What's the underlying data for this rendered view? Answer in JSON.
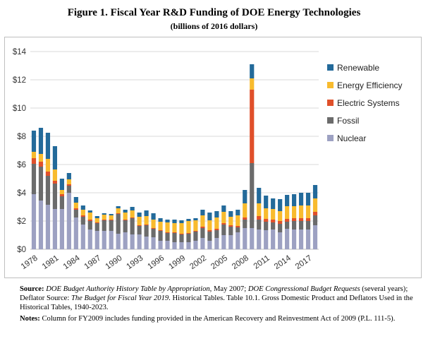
{
  "figure": {
    "title": "Figure 1. Fiscal Year R&D Funding of DOE Energy Technologies",
    "subtitle": "(billions of 2016 dollars)"
  },
  "chart_data": {
    "type": "bar",
    "stacked": true,
    "title": "Figure 1. Fiscal Year R&D Funding of DOE Energy Technologies",
    "subtitle": "(billions of 2016 dollars)",
    "xlabel": "",
    "ylabel": "",
    "ylim": [
      0,
      14
    ],
    "yticks": [
      "$0",
      "$2",
      "$4",
      "$6",
      "$8",
      "$10",
      "$12",
      "$14"
    ],
    "xtick_labels": [
      "1978",
      "1981",
      "1984",
      "1987",
      "1990",
      "1993",
      "1996",
      "1999",
      "2002",
      "2005",
      "2008",
      "2011",
      "2014",
      "2017"
    ],
    "grid": true,
    "legend_position": "right",
    "categories": [
      1978,
      1979,
      1980,
      1981,
      1982,
      1983,
      1984,
      1985,
      1986,
      1987,
      1988,
      1989,
      1990,
      1991,
      1992,
      1993,
      1994,
      1995,
      1996,
      1997,
      1998,
      1999,
      2000,
      2001,
      2002,
      2003,
      2004,
      2005,
      2006,
      2007,
      2008,
      2009,
      2010,
      2011,
      2012,
      2013,
      2014,
      2015,
      2016,
      2017,
      2018
    ],
    "series": [
      {
        "name": "Nuclear",
        "color": "#9da1c2",
        "values": [
          3.9,
          3.45,
          3.15,
          2.85,
          2.85,
          4.0,
          2.25,
          1.75,
          1.4,
          1.3,
          1.3,
          1.3,
          1.1,
          1.2,
          1.05,
          1.05,
          0.9,
          0.85,
          0.6,
          0.6,
          0.5,
          0.5,
          0.5,
          0.6,
          0.8,
          0.6,
          0.8,
          1.0,
          1.0,
          1.2,
          1.5,
          1.5,
          1.4,
          1.35,
          1.4,
          1.2,
          1.45,
          1.4,
          1.4,
          1.4,
          1.7
        ]
      },
      {
        "name": "Fossil",
        "color": "#6b6b6b",
        "values": [
          2.15,
          2.4,
          2.05,
          1.8,
          0.9,
          0.5,
          0.55,
          0.55,
          0.6,
          0.55,
          0.75,
          0.75,
          1.4,
          0.85,
          1.15,
          0.6,
          0.8,
          0.6,
          0.7,
          0.55,
          0.65,
          0.55,
          0.6,
          0.65,
          0.7,
          0.65,
          0.55,
          0.75,
          0.6,
          0.35,
          0.6,
          4.6,
          0.7,
          0.6,
          0.5,
          0.6,
          0.5,
          0.6,
          0.6,
          0.6,
          0.7
        ]
      },
      {
        "name": "Electric Systems",
        "color": "#e0502a",
        "values": [
          0.4,
          0.35,
          0.3,
          0.2,
          0.15,
          0.1,
          0.1,
          0.1,
          0.1,
          0.05,
          0.05,
          0.05,
          0.05,
          0.05,
          0.05,
          0.05,
          0.05,
          0.05,
          0.05,
          0.05,
          0.05,
          0.05,
          0.05,
          0.05,
          0.1,
          0.1,
          0.1,
          0.1,
          0.1,
          0.1,
          0.15,
          5.2,
          0.25,
          0.2,
          0.2,
          0.2,
          0.2,
          0.2,
          0.2,
          0.2,
          0.25
        ]
      },
      {
        "name": "Energy Efficiency",
        "color": "#f8bb2e",
        "values": [
          0.45,
          0.55,
          0.9,
          0.8,
          0.3,
          0.35,
          0.4,
          0.4,
          0.5,
          0.3,
          0.35,
          0.3,
          0.35,
          0.5,
          0.5,
          0.6,
          0.6,
          0.6,
          0.6,
          0.7,
          0.65,
          0.75,
          0.85,
          0.75,
          0.8,
          0.7,
          0.8,
          0.8,
          0.6,
          0.75,
          1.0,
          0.8,
          0.9,
          0.75,
          0.75,
          0.7,
          0.9,
          0.85,
          0.9,
          0.9,
          0.95
        ]
      },
      {
        "name": "Renewable",
        "color": "#236a9a",
        "values": [
          1.5,
          1.85,
          1.85,
          1.65,
          0.8,
          0.45,
          0.4,
          0.3,
          0.15,
          0.15,
          0.1,
          0.1,
          0.15,
          0.2,
          0.25,
          0.3,
          0.4,
          0.45,
          0.25,
          0.2,
          0.25,
          0.2,
          0.15,
          0.15,
          0.4,
          0.55,
          0.45,
          0.45,
          0.4,
          0.4,
          0.95,
          1.0,
          1.1,
          0.9,
          0.75,
          0.85,
          0.8,
          0.85,
          0.9,
          0.9,
          0.95
        ]
      }
    ]
  },
  "notes": {
    "source_label": "Source:",
    "source_text_1": "DOE Budget Authority History Table by Appropriation",
    "source_text_2": ", May 2007; ",
    "source_text_3": "DOE Congressional Budget Requests",
    "source_text_4": " (several years); Deflator Source: ",
    "source_text_5": "The Budget for Fiscal Year 2019",
    "source_text_6": ". Historical Tables. Table 10.1. Gross Domestic Product and Deflators Used in the Historical Tables, 1940-2023.",
    "notes_label": "Notes:",
    "notes_text": "Column for FY2009 includes funding provided in the American Recovery and Reinvestment Act of 2009 (P.L. 111-5)."
  }
}
